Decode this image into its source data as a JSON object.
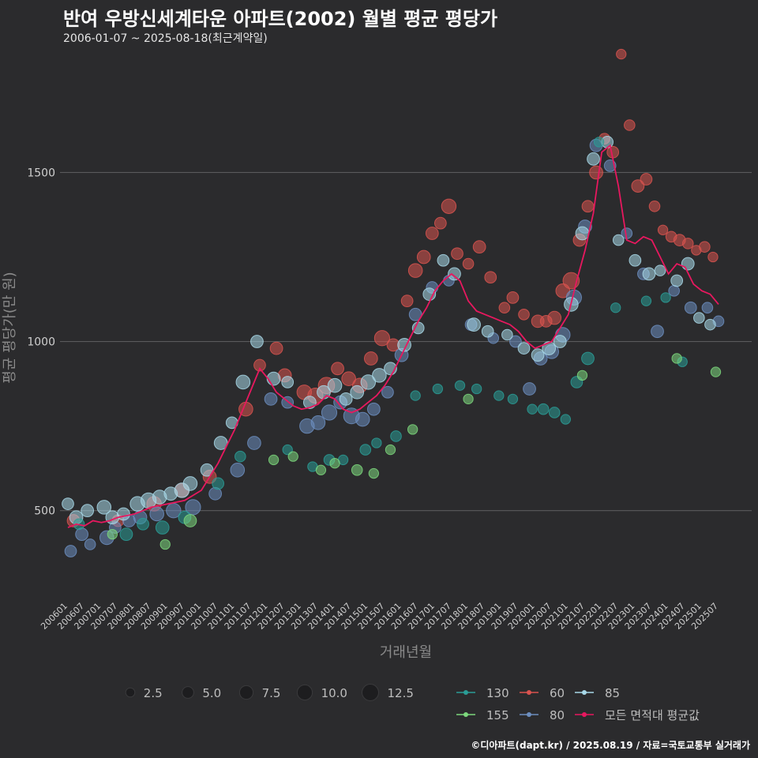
{
  "header": {
    "title": "반여 우방신세계타운 아파트(2002) 월별 평균 평당가",
    "subtitle": "2006-01-07 ~ 2025-08-18(최근계약일)"
  },
  "source": "©디아파트(dapt.kr) / 2025.08.19 / 자료=국토교통부 실거래가",
  "chart_data": {
    "type": "scatter",
    "title": "반여 우방신세계타운 아파트(2002) 월별 평균 평당가",
    "xlabel": "거래년월",
    "ylabel": "평균 평당가(만 원)",
    "ylim": [
      240,
      1870
    ],
    "grid": true,
    "yticks": [
      500,
      1000,
      1500
    ],
    "ytick_labels": [
      "500",
      "1000",
      "1500"
    ],
    "xticks": [
      "200601",
      "200607",
      "200701",
      "200707",
      "200801",
      "200807",
      "200901",
      "200907",
      "201001",
      "201007",
      "201101",
      "201107",
      "201201",
      "201207",
      "201301",
      "201307",
      "201401",
      "201407",
      "201501",
      "201507",
      "201601",
      "201607",
      "201701",
      "201707",
      "201801",
      "201807",
      "201901",
      "201907",
      "202001",
      "202007",
      "202101",
      "202107",
      "202201",
      "202207",
      "202301",
      "202307",
      "202401",
      "202407",
      "202501",
      "202507"
    ],
    "size_legend": {
      "title": "",
      "values": [
        2.5,
        5.0,
        7.5,
        10.0,
        12.5
      ],
      "labels": [
        "2.5",
        "5.0",
        "7.5",
        "10.0",
        "12.5"
      ]
    },
    "legend": [
      {
        "name": "130",
        "color": "#2a9d96"
      },
      {
        "name": "60",
        "color": "#d9534f"
      },
      {
        "name": "85",
        "color": "#a8d8e8"
      },
      {
        "name": "155",
        "color": "#7dd87d"
      },
      {
        "name": "80",
        "color": "#6c8ebf"
      },
      {
        "name": "모든 면적대 평균값",
        "color": "#e8185f"
      }
    ],
    "series": [
      {
        "name": "모든 면적대 평균값",
        "type": "line",
        "color": "#e8185f",
        "x": [
          "200601",
          "200604",
          "200607",
          "200610",
          "200701",
          "200704",
          "200707",
          "200710",
          "200801",
          "200804",
          "200807",
          "200810",
          "200901",
          "200904",
          "200907",
          "200910",
          "201001",
          "201004",
          "201007",
          "201010",
          "201101",
          "201104",
          "201107",
          "201110",
          "201201",
          "201204",
          "201207",
          "201210",
          "201301",
          "201304",
          "201307",
          "201310",
          "201401",
          "201404",
          "201407",
          "201410",
          "201501",
          "201504",
          "201507",
          "201510",
          "201601",
          "201604",
          "201607",
          "201610",
          "201701",
          "201704",
          "201707",
          "201710",
          "201801",
          "201804",
          "201807",
          "201810",
          "201901",
          "201904",
          "201907",
          "201910",
          "202001",
          "202004",
          "202007",
          "202010",
          "202101",
          "202104",
          "202107",
          "202110",
          "202201",
          "202204",
          "202207",
          "202210",
          "202301",
          "202304",
          "202307",
          "202310",
          "202401",
          "202404",
          "202407",
          "202410",
          "202501",
          "202504",
          "202507"
        ],
        "values": [
          450,
          460,
          455,
          470,
          465,
          470,
          480,
          485,
          490,
          500,
          510,
          515,
          520,
          525,
          530,
          545,
          560,
          600,
          640,
          690,
          740,
          800,
          860,
          920,
          890,
          850,
          830,
          810,
          800,
          805,
          815,
          840,
          830,
          800,
          790,
          800,
          820,
          840,
          870,
          910,
          960,
          1010,
          1060,
          1100,
          1150,
          1180,
          1200,
          1180,
          1120,
          1090,
          1080,
          1070,
          1060,
          1050,
          1030,
          1000,
          980,
          990,
          1000,
          1040,
          1080,
          1180,
          1270,
          1380,
          1560,
          1580,
          1460,
          1300,
          1290,
          1310,
          1300,
          1250,
          1200,
          1230,
          1220,
          1170,
          1150,
          1140,
          1110
        ]
      },
      {
        "name": "60",
        "type": "scatter",
        "color": "#d9534f",
        "x": [
          "200603",
          "200707",
          "200808",
          "200906",
          "201004",
          "201105",
          "201110",
          "201204",
          "201207",
          "201302",
          "201306",
          "201310",
          "201402",
          "201406",
          "201410",
          "201502",
          "201506",
          "201510",
          "201603",
          "201606",
          "201609",
          "201612",
          "201703",
          "201706",
          "201709",
          "201801",
          "201805",
          "201809",
          "201902",
          "201905",
          "201909",
          "202002",
          "202005",
          "202008",
          "202011",
          "202102",
          "202105",
          "202108",
          "202111",
          "202202",
          "202205",
          "202208",
          "202211",
          "202302",
          "202305",
          "202308",
          "202311",
          "202402",
          "202405",
          "202408",
          "202411",
          "202502",
          "202505"
        ],
        "values": [
          470,
          470,
          520,
          560,
          600,
          800,
          930,
          980,
          900,
          850,
          840,
          870,
          920,
          890,
          870,
          950,
          1010,
          990,
          1120,
          1210,
          1250,
          1320,
          1350,
          1400,
          1260,
          1230,
          1280,
          1190,
          1100,
          1130,
          1080,
          1060,
          1060,
          1070,
          1150,
          1180,
          1300,
          1400,
          1500,
          1600,
          1560,
          1850,
          1640,
          1460,
          1480,
          1400,
          1330,
          1310,
          1300,
          1290,
          1270,
          1280,
          1250
        ],
        "sizes": [
          6,
          5,
          9,
          8,
          7,
          8,
          5,
          6,
          7,
          9,
          10,
          12,
          6,
          8,
          9,
          7,
          10,
          6,
          5,
          8,
          7,
          6,
          5,
          9,
          5,
          4,
          6,
          5,
          4,
          5,
          4,
          6,
          5,
          7,
          8,
          12,
          6,
          5,
          7,
          4,
          5,
          3,
          4,
          6,
          5,
          4,
          3,
          4,
          5,
          4,
          3,
          4,
          3
        ]
      },
      {
        "name": "80",
        "type": "scatter",
        "color": "#6c8ebf",
        "x": [
          "200602",
          "200606",
          "200609",
          "200703",
          "200706",
          "200711",
          "200803",
          "200809",
          "200903",
          "200910",
          "201006",
          "201102",
          "201108",
          "201202",
          "201208",
          "201303",
          "201307",
          "201311",
          "201403",
          "201407",
          "201411",
          "201503",
          "201508",
          "201601",
          "201606",
          "201612",
          "201706",
          "201802",
          "201810",
          "201906",
          "201911",
          "202003",
          "202007",
          "202011",
          "202103",
          "202107",
          "202111",
          "202204",
          "202210",
          "202304",
          "202309",
          "202403",
          "202409",
          "202503",
          "202507"
        ],
        "values": [
          380,
          430,
          400,
          420,
          450,
          470,
          480,
          490,
          500,
          510,
          550,
          620,
          700,
          830,
          820,
          750,
          760,
          790,
          820,
          780,
          770,
          800,
          850,
          960,
          1080,
          1160,
          1180,
          1050,
          1010,
          1000,
          860,
          950,
          970,
          1020,
          1130,
          1340,
          1580,
          1520,
          1320,
          1200,
          1030,
          1150,
          1100,
          1100,
          1060
        ],
        "sizes": [
          5,
          6,
          4,
          8,
          5,
          6,
          7,
          8,
          9,
          10,
          6,
          8,
          7,
          6,
          5,
          9,
          8,
          10,
          7,
          11,
          8,
          6,
          5,
          7,
          6,
          5,
          4,
          5,
          4,
          5,
          6,
          7,
          8,
          9,
          10,
          7,
          6,
          5,
          4,
          5,
          6,
          4,
          5,
          4,
          4
        ]
      },
      {
        "name": "85",
        "type": "scatter",
        "color": "#a8d8e8",
        "x": [
          "200601",
          "200604",
          "200608",
          "200702",
          "200705",
          "200709",
          "200802",
          "200806",
          "200810",
          "200902",
          "200906",
          "200909",
          "201003",
          "201008",
          "201012",
          "201104",
          "201109",
          "201203",
          "201208",
          "201304",
          "201309",
          "201401",
          "201405",
          "201409",
          "201501",
          "201505",
          "201509",
          "201602",
          "201607",
          "201611",
          "201704",
          "201708",
          "201803",
          "201808",
          "201903",
          "201909",
          "202002",
          "202006",
          "202010",
          "202102",
          "202106",
          "202110",
          "202203",
          "202207",
          "202301",
          "202306",
          "202310",
          "202404",
          "202408",
          "202412",
          "202504"
        ],
        "values": [
          520,
          480,
          500,
          510,
          480,
          490,
          520,
          530,
          540,
          550,
          560,
          580,
          620,
          700,
          760,
          880,
          1000,
          890,
          880,
          820,
          850,
          870,
          830,
          850,
          880,
          900,
          920,
          990,
          1040,
          1140,
          1240,
          1200,
          1050,
          1030,
          1020,
          980,
          960,
          980,
          1000,
          1110,
          1320,
          1540,
          1590,
          1300,
          1240,
          1200,
          1210,
          1180,
          1230,
          1070,
          1050
        ],
        "sizes": [
          5,
          7,
          6,
          8,
          7,
          6,
          9,
          10,
          8,
          7,
          9,
          8,
          6,
          7,
          5,
          8,
          6,
          7,
          5,
          6,
          7,
          8,
          6,
          7,
          9,
          8,
          6,
          7,
          5,
          6,
          5,
          6,
          7,
          5,
          4,
          5,
          6,
          7,
          6,
          8,
          7,
          6,
          5,
          4,
          5,
          6,
          4,
          5,
          6,
          4,
          4
        ]
      },
      {
        "name": "130",
        "type": "scatter",
        "color": "#2a9d96",
        "x": [
          "200605",
          "200710",
          "200804",
          "200811",
          "200907",
          "201007",
          "201103",
          "201208",
          "201305",
          "201311",
          "201404",
          "201412",
          "201504",
          "201511",
          "201606",
          "201702",
          "201710",
          "201804",
          "201812",
          "201905",
          "201912",
          "202004",
          "202008",
          "202012",
          "202104",
          "202108",
          "202112",
          "202206",
          "202305",
          "202312",
          "202406"
        ],
        "values": [
          460,
          430,
          460,
          450,
          480,
          580,
          660,
          680,
          630,
          650,
          650,
          680,
          700,
          720,
          840,
          860,
          870,
          860,
          840,
          830,
          800,
          800,
          790,
          770,
          880,
          950,
          1590,
          1100,
          1120,
          1130,
          940
        ],
        "sizes": [
          4,
          6,
          5,
          7,
          6,
          5,
          4,
          3,
          3,
          4,
          3,
          4,
          3,
          4,
          3,
          3,
          3,
          3,
          3,
          3,
          3,
          4,
          4,
          3,
          5,
          6,
          3,
          3,
          3,
          3,
          3
        ]
      },
      {
        "name": "155",
        "type": "scatter",
        "color": "#7dd87d",
        "x": [
          "200705",
          "200812",
          "200909",
          "201203",
          "201210",
          "201308",
          "201401",
          "201409",
          "201503",
          "201509",
          "201605",
          "201801",
          "202106",
          "202404",
          "202506"
        ],
        "values": [
          430,
          400,
          470,
          650,
          660,
          620,
          640,
          620,
          610,
          680,
          740,
          830,
          900,
          950,
          910
        ],
        "sizes": [
          3,
          3,
          6,
          3,
          3,
          3,
          3,
          4,
          3,
          3,
          3,
          3,
          3,
          3,
          3
        ]
      }
    ]
  }
}
